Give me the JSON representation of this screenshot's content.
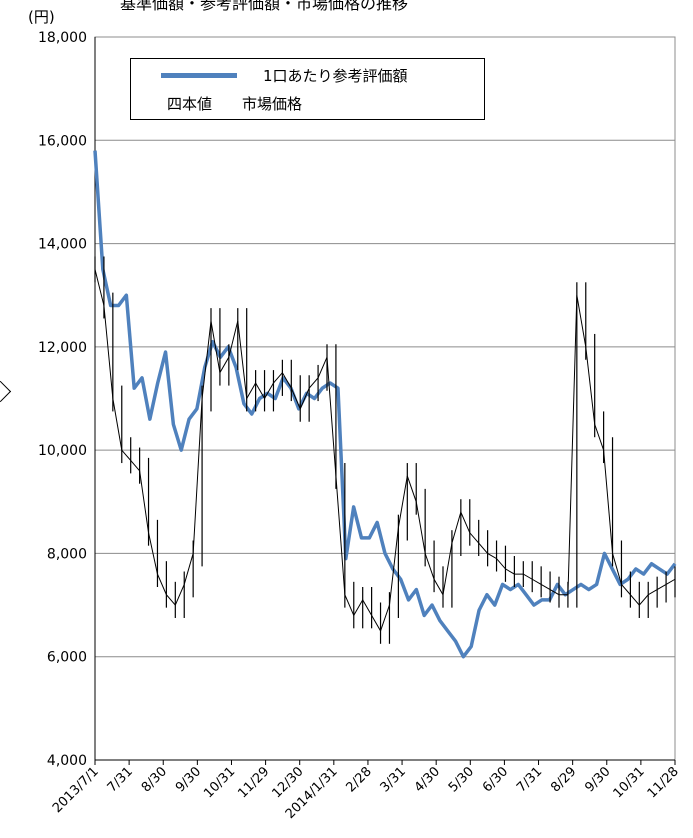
{
  "chart_data": {
    "type": "line",
    "unit_label": "(円)",
    "top_text": "基準価額・参考評価額・市場価格の推移",
    "y_ticks": [
      "4,000",
      "6,000",
      "8,000",
      "10,000",
      "12,000",
      "14,000",
      "16,000",
      "18,000"
    ],
    "ylim": [
      4000,
      18000
    ],
    "x_ticks": [
      "2013/7/1",
      "7/31",
      "8/30",
      "9/30",
      "10/31",
      "11/29",
      "12/30",
      "2014/1/31",
      "2/28",
      "3/31",
      "4/30",
      "5/30",
      "6/30",
      "7/31",
      "8/29",
      "9/30",
      "10/31",
      "11/28"
    ],
    "grid": true,
    "legend_position": "top-left",
    "series": [
      {
        "name": "1口あたり参考評価額",
        "style": "line",
        "color": "#4f81bd",
        "values": [
          15800,
          13500,
          12800,
          12800,
          13000,
          11200,
          11400,
          10600,
          11300,
          11900,
          10500,
          10000,
          10600,
          10800,
          11600,
          12100,
          11800,
          12000,
          11600,
          10900,
          10700,
          11000,
          11100,
          11000,
          11400,
          11200,
          10800,
          11100,
          11000,
          11200,
          11300,
          11200,
          7900,
          8900,
          8300,
          8300,
          8600,
          8000,
          7700,
          7500,
          7100,
          7300,
          6800,
          7000,
          6700,
          6500,
          6300,
          6000,
          6200,
          6900,
          7200,
          7000,
          7400,
          7300,
          7400,
          7200,
          7000,
          7100,
          7100,
          7400,
          7200,
          7300,
          7400,
          7300,
          7400,
          8000,
          7700,
          7400,
          7500,
          7700,
          7600,
          7800,
          7700,
          7600,
          7800
        ]
      },
      {
        "name": "四本値　　市場価格",
        "style": "ohlc",
        "color": "#000000",
        "values": [
          13500,
          12800,
          11000,
          10000,
          9800,
          9600,
          8400,
          7600,
          7200,
          7000,
          7400,
          8000,
          11000,
          12500,
          11500,
          11800,
          12500,
          11000,
          11300,
          11000,
          11300,
          11500,
          11200,
          10800,
          11200,
          11400,
          11800,
          9500,
          7200,
          6800,
          7100,
          6800,
          6500,
          7000,
          8500,
          9500,
          9000,
          8000,
          7500,
          7200,
          8200,
          8800,
          8400,
          8200,
          8000,
          7900,
          7700,
          7600,
          7600,
          7500,
          7400,
          7300,
          7200,
          7200,
          13000,
          12000,
          10500,
          10000,
          8000,
          7400,
          7200,
          7000,
          7200,
          7300,
          7400,
          7500
        ]
      }
    ]
  }
}
